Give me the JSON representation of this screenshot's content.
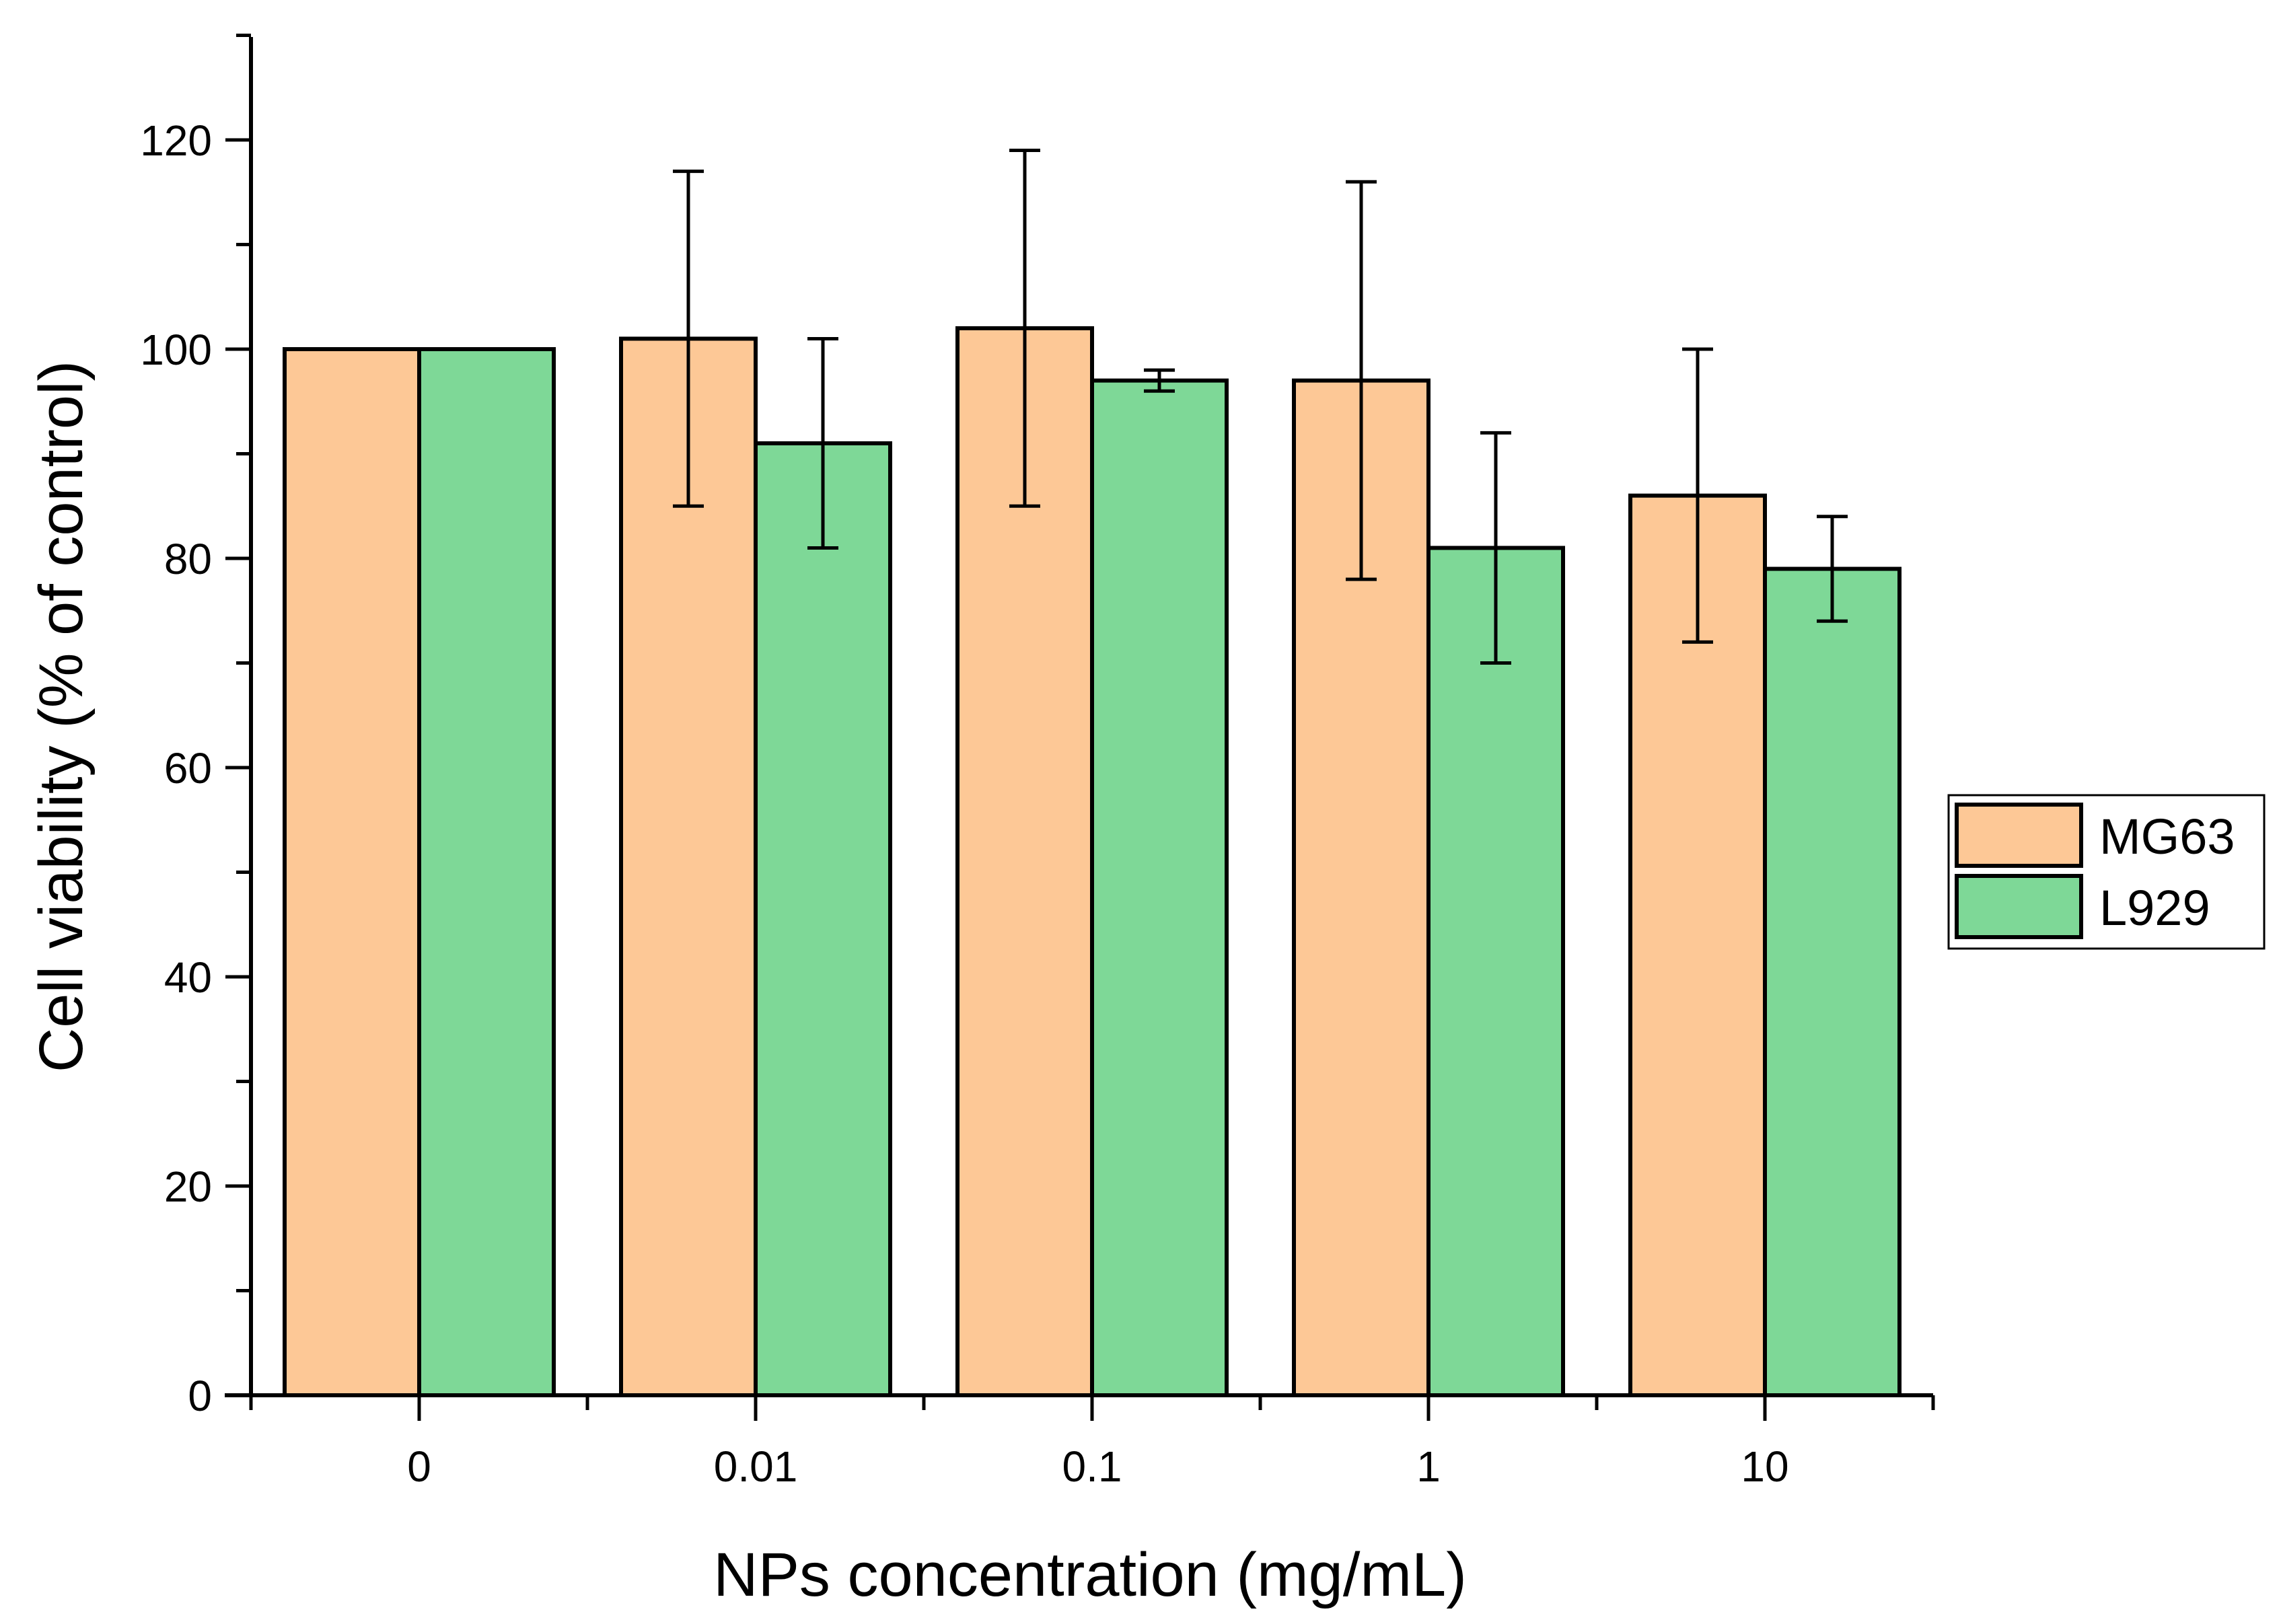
{
  "chart_data": {
    "type": "bar",
    "title": "",
    "xlabel": "NPs concentration (mg/mL)",
    "ylabel": "Cell viability (% of control)",
    "categories": [
      "0",
      "0.01",
      "0.1",
      "1",
      "10"
    ],
    "ylim": [
      0,
      130
    ],
    "yticks": [
      0,
      20,
      40,
      60,
      80,
      100,
      120
    ],
    "y_tick_labels": [
      "0",
      "20",
      "40",
      "60",
      "80",
      "100",
      "120"
    ],
    "grid": false,
    "legend_position": "right",
    "series": [
      {
        "name": "MG63",
        "color": "#FDC896",
        "values": [
          100,
          101,
          102,
          97,
          86
        ],
        "error_low": [
          null,
          85,
          85,
          78,
          72
        ],
        "error_high": [
          null,
          117,
          119,
          116,
          100
        ]
      },
      {
        "name": "L929",
        "color": "#7ED897",
        "values": [
          100,
          91,
          97,
          81,
          79
        ],
        "error_low": [
          null,
          81,
          96,
          70,
          74
        ],
        "error_high": [
          null,
          101,
          98,
          92,
          84
        ]
      }
    ]
  }
}
